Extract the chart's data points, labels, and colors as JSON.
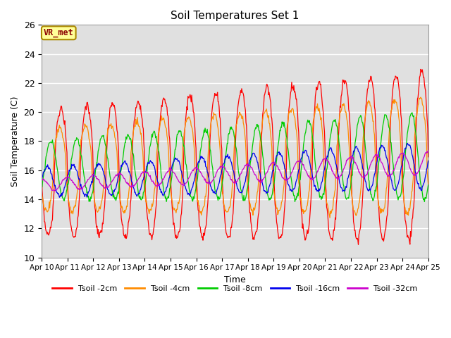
{
  "title": "Soil Temperatures Set 1",
  "xlabel": "Time",
  "ylabel": "Soil Temperature (C)",
  "ylim": [
    10,
    26
  ],
  "yticks": [
    10,
    12,
    14,
    16,
    18,
    20,
    22,
    24,
    26
  ],
  "start_day": 10,
  "n_days": 15,
  "annotation_text": "VR_met",
  "annotation_color": "#8B0000",
  "annotation_bg": "#FFFF99",
  "bg_color": "#E0E0E0",
  "series": [
    {
      "label": "Tsoil -2cm",
      "color": "#FF0000"
    },
    {
      "label": "Tsoil -4cm",
      "color": "#FF8C00"
    },
    {
      "label": "Tsoil -8cm",
      "color": "#00CC00"
    },
    {
      "label": "Tsoil -16cm",
      "color": "#0000EE"
    },
    {
      "label": "Tsoil -32cm",
      "color": "#CC00CC"
    }
  ]
}
